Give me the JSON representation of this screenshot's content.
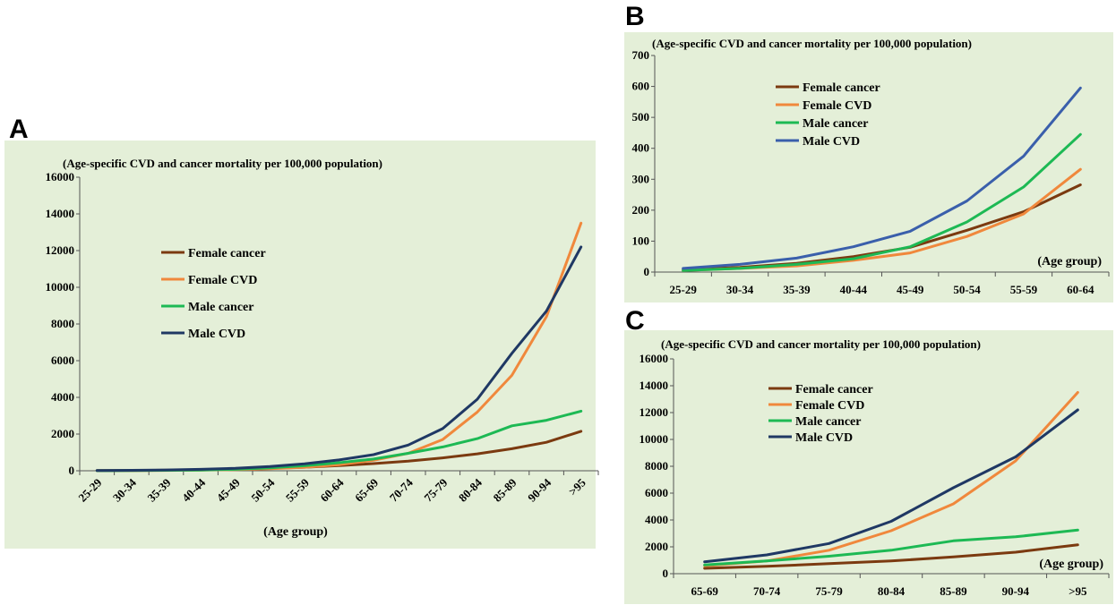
{
  "panels": [
    {
      "letter": "A",
      "chart_data": {
        "type": "line",
        "title": "(Age-specific CVD and cancer mortality  per 100,000 population)",
        "xlabel": "(Age group)",
        "ylabel": "",
        "ylim": [
          0,
          16000
        ],
        "yticks": [
          "0",
          "2000",
          "4000",
          "6000",
          "8000",
          "10000",
          "12000",
          "14000",
          "16000"
        ],
        "categories": [
          "25-29",
          "30-34",
          "35-39",
          "40-44",
          "45-49",
          "50-54",
          "55-59",
          "60-64",
          "65-69",
          "70-74",
          "75-79",
          "80-84",
          "85-89",
          "90-94",
          ">95"
        ],
        "legend_position": "upper-left",
        "grid": false,
        "series": [
          {
            "name": "Female cancer",
            "color": "#7b3a10",
            "values": [
              8,
              15,
              28,
              45,
              80,
              130,
              190,
              280,
              390,
              520,
              700,
              920,
              1200,
              1550,
              2150
            ]
          },
          {
            "name": "Female CVD",
            "color": "#f0883c",
            "values": [
              5,
              10,
              18,
              35,
              60,
              110,
              190,
              330,
              570,
              950,
              1700,
              3200,
              5200,
              8400,
              13500
            ]
          },
          {
            "name": "Male cancer",
            "color": "#1db954",
            "values": [
              5,
              12,
              25,
              40,
              80,
              160,
              275,
              440,
              640,
              950,
              1300,
              1750,
              2450,
              2750,
              3250
            ]
          },
          {
            "name": "Male CVD",
            "color": "#1f3864",
            "values": [
              12,
              25,
              45,
              80,
              130,
              230,
              375,
              590,
              880,
              1400,
              2300,
              3900,
              6400,
              8700,
              12200
            ]
          }
        ]
      }
    },
    {
      "letter": "B",
      "chart_data": {
        "type": "line",
        "title": "(Age-specific CVD and cancer mortality  per 100,000 population)",
        "xlabel": "(Age group)",
        "ylabel": "",
        "ylim": [
          0,
          700
        ],
        "yticks": [
          "0",
          "100",
          "200",
          "300",
          "400",
          "500",
          "600",
          "700"
        ],
        "categories": [
          "25-29",
          "30-34",
          "35-39",
          "40-44",
          "45-49",
          "50-54",
          "55-59",
          "60-64"
        ],
        "legend_position": "upper-left",
        "grid": false,
        "series": [
          {
            "name": "Female cancer",
            "color": "#7b3a10",
            "values": [
              8,
              15,
              28,
              50,
              80,
              135,
              195,
              282
            ]
          },
          {
            "name": "Female CVD",
            "color": "#f0883c",
            "values": [
              5,
              12,
              20,
              38,
              62,
              115,
              188,
              332
            ]
          },
          {
            "name": "Male cancer",
            "color": "#1db954",
            "values": [
              5,
              12,
              25,
              43,
              82,
              162,
              275,
              445
            ]
          },
          {
            "name": "Male CVD",
            "color": "#3a5fab",
            "values": [
              12,
              25,
              45,
              82,
              132,
              230,
              375,
              595
            ]
          }
        ]
      }
    },
    {
      "letter": "C",
      "chart_data": {
        "type": "line",
        "title": "(Age-specific CVD and cancer mortality  per 100,000 population)",
        "xlabel": "(Age group)",
        "ylabel": "",
        "ylim": [
          0,
          16000
        ],
        "yticks": [
          "0",
          "2000",
          "4000",
          "6000",
          "8000",
          "10000",
          "12000",
          "14000",
          "16000"
        ],
        "categories": [
          "65-69",
          "70-74",
          "75-79",
          "80-84",
          "85-89",
          "90-94",
          ">95"
        ],
        "legend_position": "upper-left",
        "grid": false,
        "series": [
          {
            "name": "Female cancer",
            "color": "#7b3a10",
            "values": [
              400,
              550,
              750,
              950,
              1250,
              1600,
              2150
            ]
          },
          {
            "name": "Female CVD",
            "color": "#f0883c",
            "values": [
              580,
              950,
              1750,
              3200,
              5200,
              8400,
              13500
            ]
          },
          {
            "name": "Male cancer",
            "color": "#1db954",
            "values": [
              650,
              950,
              1300,
              1750,
              2450,
              2750,
              3250
            ]
          },
          {
            "name": "Male CVD",
            "color": "#1f3864",
            "values": [
              880,
              1400,
              2250,
              3900,
              6400,
              8700,
              12200
            ]
          }
        ]
      }
    }
  ]
}
